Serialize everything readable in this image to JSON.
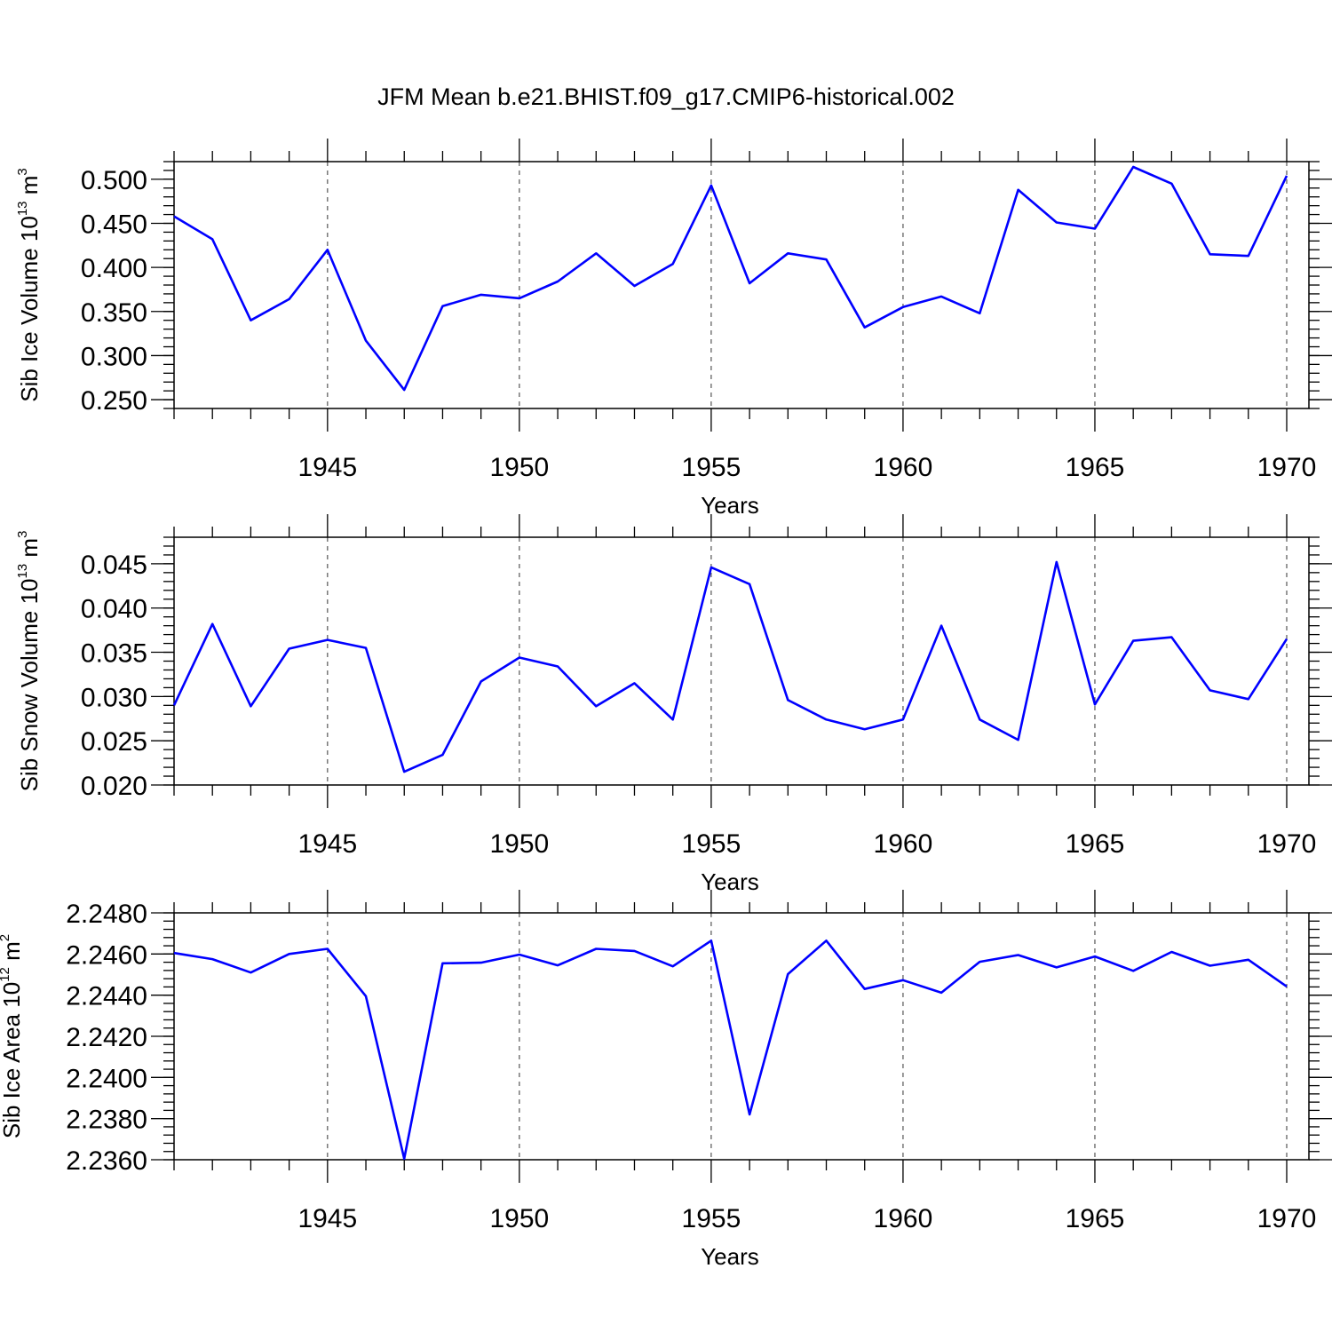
{
  "title": "JFM Mean b.e21.BHIST.f09_g17.CMIP6-historical.002",
  "colors": {
    "line": "#0000ff",
    "axes": "#000000",
    "grid": "#555555"
  },
  "chart_data": [
    {
      "type": "line",
      "ylabel": "Sib Ice Volume 10",
      "ylabel_exponent": "13",
      "ylabel_unit": " m",
      "ylabel_unit_exponent": "3",
      "xlabel": "Years",
      "xlim": [
        1941,
        1970
      ],
      "ylim": [
        0.24,
        0.52
      ],
      "yticks": [
        0.25,
        0.3,
        0.35,
        0.4,
        0.45,
        0.5
      ],
      "ytick_labels": [
        "0.250",
        "0.300",
        "0.350",
        "0.400",
        "0.450",
        "0.500"
      ],
      "yminor_step": 0.01,
      "xticks": [
        1945,
        1950,
        1955,
        1960,
        1965,
        1970
      ],
      "xtick_labels": [
        "1945",
        "1950",
        "1955",
        "1960",
        "1965",
        "1970"
      ],
      "grid": "vertical dashed at major x ticks",
      "x": [
        1941,
        1942,
        1943,
        1944,
        1945,
        1946,
        1947,
        1948,
        1949,
        1950,
        1951,
        1952,
        1953,
        1954,
        1955,
        1956,
        1957,
        1958,
        1959,
        1960,
        1961,
        1962,
        1963,
        1964,
        1965,
        1966,
        1967,
        1968,
        1969,
        1970
      ],
      "values": [
        0.458,
        0.432,
        0.34,
        0.364,
        0.42,
        0.317,
        0.261,
        0.356,
        0.369,
        0.365,
        0.384,
        0.416,
        0.379,
        0.404,
        0.493,
        0.382,
        0.416,
        0.409,
        0.332,
        0.355,
        0.367,
        0.348,
        0.488,
        0.451,
        0.444,
        0.514,
        0.495,
        0.415,
        0.413,
        0.504
      ]
    },
    {
      "type": "line",
      "ylabel": "Sib Snow Volume 10",
      "ylabel_exponent": "13",
      "ylabel_unit": " m",
      "ylabel_unit_exponent": "3",
      "xlabel": "Years",
      "xlim": [
        1941,
        1970
      ],
      "ylim": [
        0.02,
        0.048
      ],
      "yticks": [
        0.02,
        0.025,
        0.03,
        0.035,
        0.04,
        0.045
      ],
      "ytick_labels": [
        "0.020",
        "0.025",
        "0.030",
        "0.035",
        "0.040",
        "0.045"
      ],
      "yminor_step": 0.001,
      "xticks": [
        1945,
        1950,
        1955,
        1960,
        1965,
        1970
      ],
      "xtick_labels": [
        "1945",
        "1950",
        "1955",
        "1960",
        "1965",
        "1970"
      ],
      "grid": "vertical dashed at major x ticks",
      "x": [
        1941,
        1942,
        1943,
        1944,
        1945,
        1946,
        1947,
        1948,
        1949,
        1950,
        1951,
        1952,
        1953,
        1954,
        1955,
        1956,
        1957,
        1958,
        1959,
        1960,
        1961,
        1962,
        1963,
        1964,
        1965,
        1966,
        1967,
        1968,
        1969,
        1970
      ],
      "values": [
        0.029,
        0.0382,
        0.0289,
        0.0354,
        0.0364,
        0.0355,
        0.0215,
        0.0234,
        0.0317,
        0.0344,
        0.0334,
        0.0289,
        0.0315,
        0.0274,
        0.0446,
        0.0427,
        0.0296,
        0.0274,
        0.0263,
        0.0274,
        0.038,
        0.0274,
        0.0251,
        0.0452,
        0.0291,
        0.0363,
        0.0367,
        0.0307,
        0.0297,
        0.0365
      ]
    },
    {
      "type": "line",
      "ylabel": "Sib Ice Area 10",
      "ylabel_exponent": "12",
      "ylabel_unit": " m",
      "ylabel_unit_exponent": "2",
      "xlabel": "Years",
      "xlim": [
        1941,
        1970
      ],
      "ylim": [
        2.236,
        2.248
      ],
      "yticks": [
        2.236,
        2.238,
        2.24,
        2.242,
        2.244,
        2.246,
        2.248
      ],
      "ytick_labels": [
        "2.2360",
        "2.2380",
        "2.2400",
        "2.2420",
        "2.2440",
        "2.2460",
        "2.2480"
      ],
      "yminor_step": 0.0004,
      "xticks": [
        1945,
        1950,
        1955,
        1960,
        1965,
        1970
      ],
      "xtick_labels": [
        "1945",
        "1950",
        "1955",
        "1960",
        "1965",
        "1970"
      ],
      "grid": "vertical dashed at major x ticks",
      "x": [
        1941,
        1942,
        1943,
        1944,
        1945,
        1946,
        1947,
        1948,
        1949,
        1950,
        1951,
        1952,
        1953,
        1954,
        1955,
        1956,
        1957,
        1958,
        1959,
        1960,
        1961,
        1962,
        1963,
        1964,
        1965,
        1966,
        1967,
        1968,
        1969,
        1970
      ],
      "values": [
        2.24605,
        2.24575,
        2.2451,
        2.246,
        2.24625,
        2.24395,
        2.23605,
        2.24555,
        2.24558,
        2.24597,
        2.24545,
        2.24625,
        2.24615,
        2.2454,
        2.24665,
        2.2382,
        2.24502,
        2.24665,
        2.2443,
        2.24473,
        2.24412,
        2.24562,
        2.24595,
        2.24535,
        2.24588,
        2.24518,
        2.2461,
        2.24543,
        2.24572,
        2.24442
      ]
    }
  ]
}
